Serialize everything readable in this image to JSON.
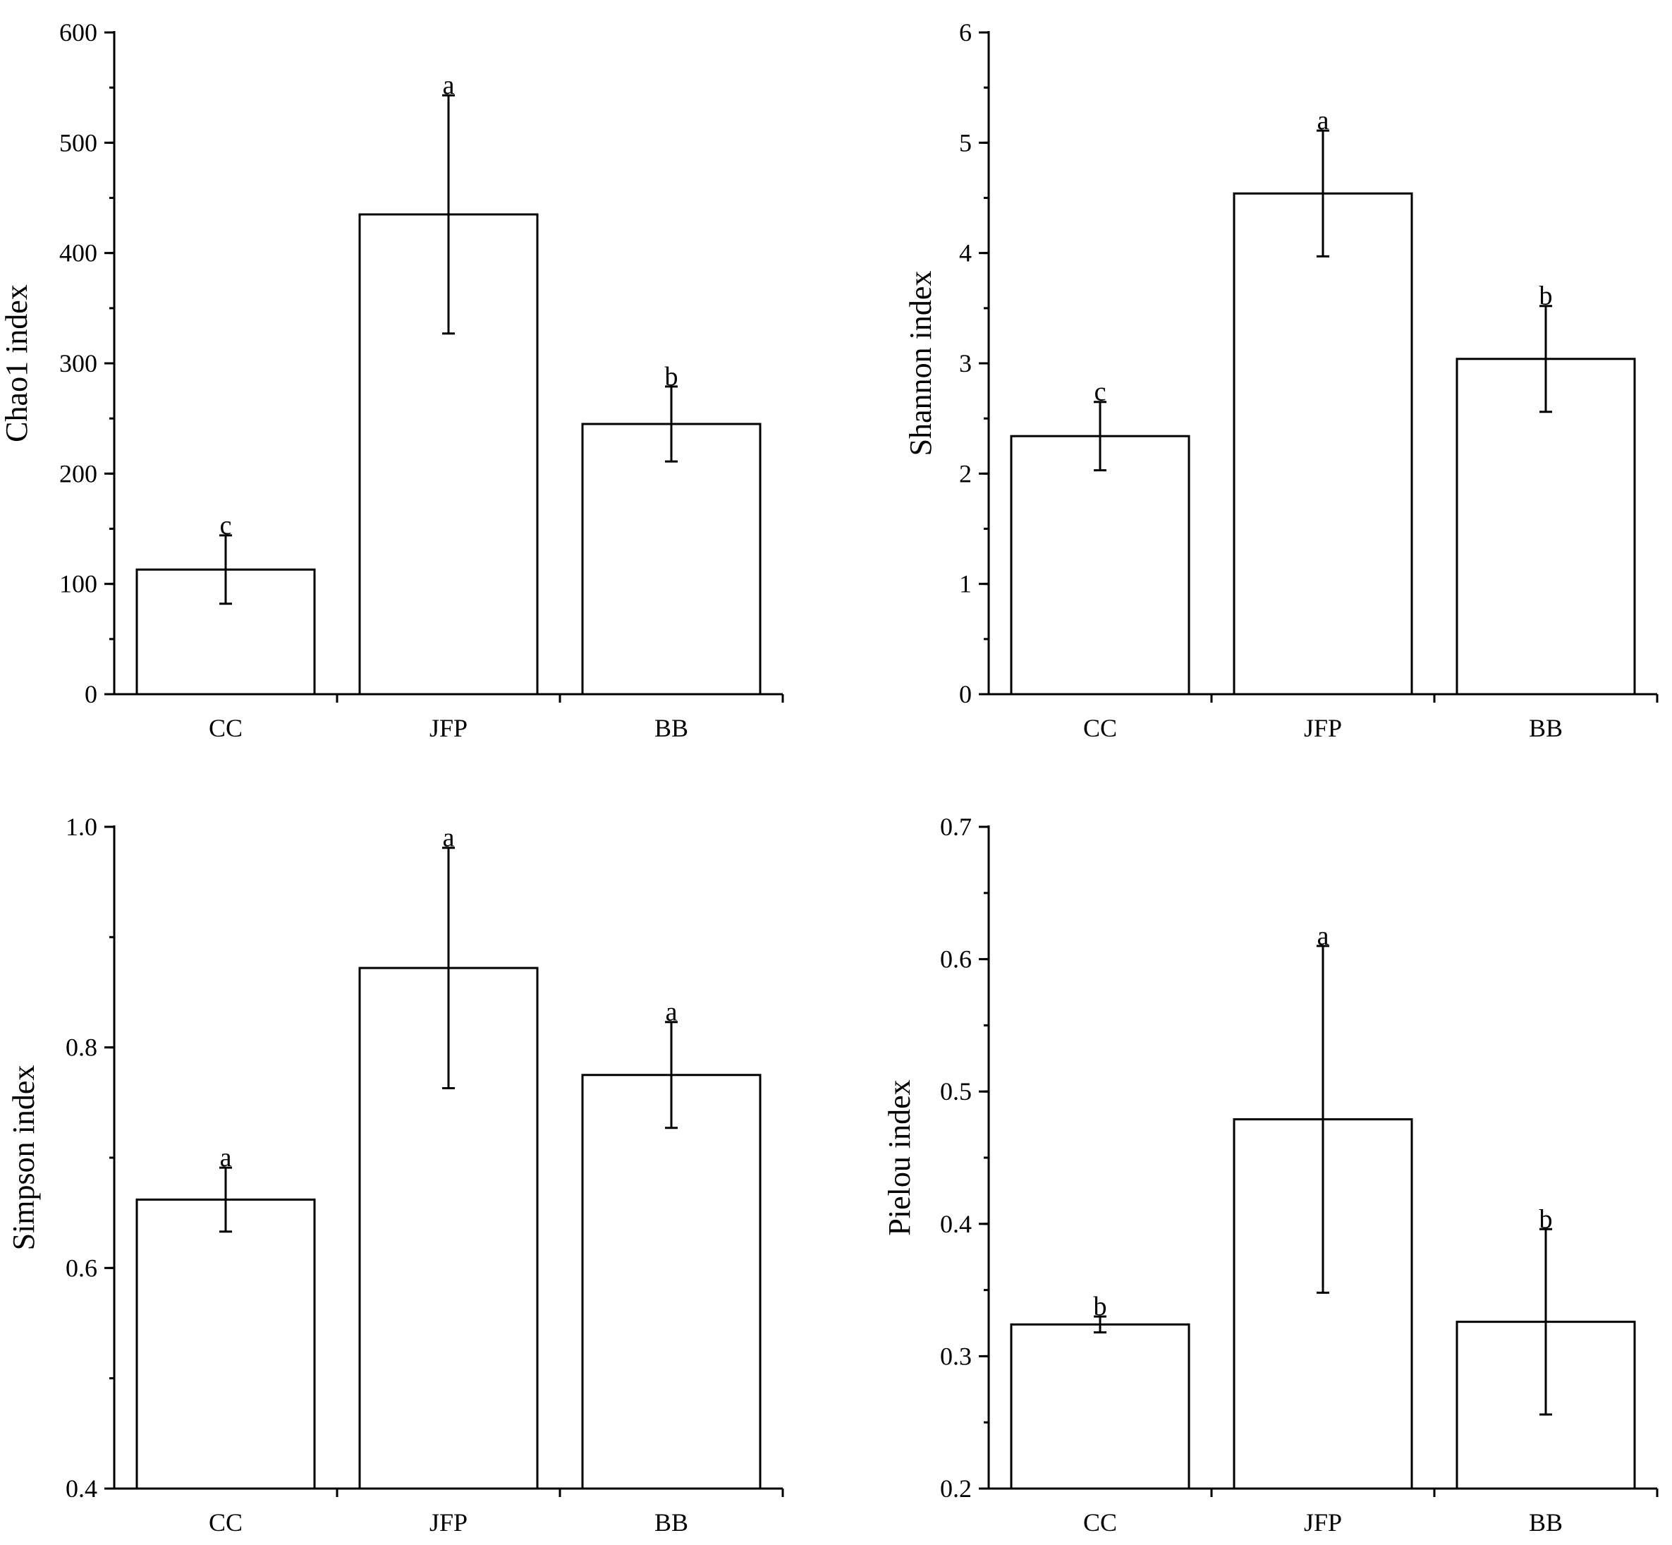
{
  "chart_data": [
    {
      "type": "bar",
      "ylabel": "Chao1 index",
      "categories": [
        "CC",
        "JFP",
        "BB"
      ],
      "values": [
        113,
        435,
        245
      ],
      "errors": [
        31,
        108,
        34
      ],
      "significance": [
        "c",
        "a",
        "b"
      ],
      "ylim": [
        0,
        600
      ],
      "yticks": [
        0,
        100,
        200,
        300,
        400,
        500,
        600
      ],
      "ytick_labels": [
        "0",
        "100",
        "200",
        "300",
        "400",
        "500",
        "600"
      ],
      "minor_step": 50
    },
    {
      "type": "bar",
      "ylabel": "Shannon index",
      "categories": [
        "CC",
        "JFP",
        "BB"
      ],
      "values": [
        2.34,
        4.54,
        3.04
      ],
      "errors": [
        0.31,
        0.57,
        0.48
      ],
      "significance": [
        "c",
        "a",
        "b"
      ],
      "ylim": [
        0,
        6
      ],
      "yticks": [
        0,
        1,
        2,
        3,
        4,
        5,
        6
      ],
      "ytick_labels": [
        "0",
        "1",
        "2",
        "3",
        "4",
        "5",
        "6"
      ],
      "minor_step": 0.5
    },
    {
      "type": "bar",
      "ylabel": "Simpson index",
      "categories": [
        "CC",
        "JFP",
        "BB"
      ],
      "values": [
        0.662,
        0.872,
        0.775
      ],
      "errors": [
        0.029,
        0.109,
        0.048
      ],
      "significance": [
        "a",
        "a",
        "a"
      ],
      "ylim": [
        0.4,
        1.0
      ],
      "yticks": [
        0.4,
        0.6,
        0.8,
        1.0
      ],
      "ytick_labels": [
        "0.4",
        "0.6",
        "0.8",
        "1.0"
      ],
      "minor_step": 0.1
    },
    {
      "type": "bar",
      "ylabel": "Pielou index",
      "categories": [
        "CC",
        "JFP",
        "BB"
      ],
      "values": [
        0.324,
        0.479,
        0.326
      ],
      "errors": [
        0.006,
        0.131,
        0.07
      ],
      "significance": [
        "b",
        "a",
        "b"
      ],
      "ylim": [
        0.2,
        0.7
      ],
      "yticks": [
        0.2,
        0.3,
        0.4,
        0.5,
        0.6,
        0.7
      ],
      "ytick_labels": [
        "0.2",
        "0.3",
        "0.4",
        "0.5",
        "0.6",
        "0.7"
      ],
      "minor_step": 0.05
    }
  ]
}
